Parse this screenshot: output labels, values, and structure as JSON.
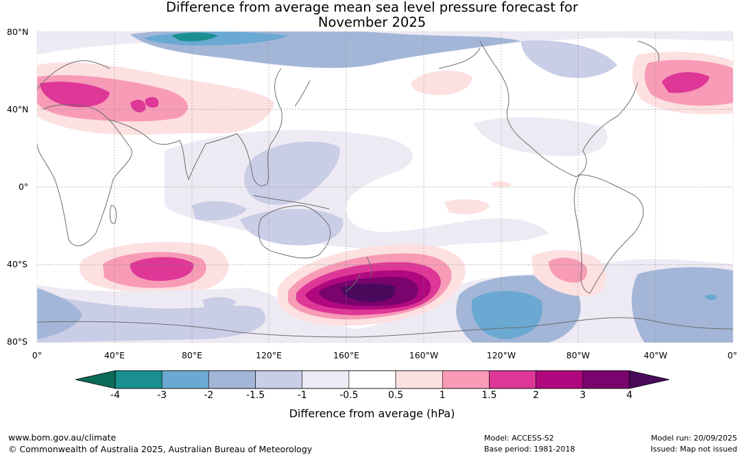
{
  "title_line1": "Difference from average mean sea level pressure forecast for",
  "title_line2": "November 2025",
  "lat_labels": [
    "80°N",
    "40°N",
    "0°",
    "40°S",
    "80°S"
  ],
  "lon_labels": [
    "0°",
    "40°E",
    "80°E",
    "120°E",
    "160°E",
    "160°W",
    "120°W",
    "80°W",
    "40°W",
    "0°"
  ],
  "colorbar": {
    "label": "Difference from average (hPa)",
    "ticks": [
      "-4",
      "-3",
      "-2",
      "-1.5",
      "-1",
      "-0.5",
      "0.5",
      "1",
      "1.5",
      "2",
      "3",
      "4"
    ],
    "colors": [
      "#1a8f8f",
      "#6aa9d2",
      "#a3b6d8",
      "#cacde6",
      "#eeeaf4",
      "#ffffff",
      "#fde0e0",
      "#f79bb7",
      "#de3797",
      "#b0087e",
      "#7a036d"
    ],
    "under_color": "#0b6b5a",
    "over_color": "#4a0a5c"
  },
  "footer": {
    "left_line1": "www.bom.gov.au/climate",
    "left_line2": "© Commonwealth of Australia 2025, Australian Bureau of Meteorology",
    "mid_line1": "Model: ACCESS-S2",
    "mid_line2": "Base period: 1981-2018",
    "right_line1": "Model run: 20/09/2025",
    "right_line2": "Issued: Map not issued"
  }
}
